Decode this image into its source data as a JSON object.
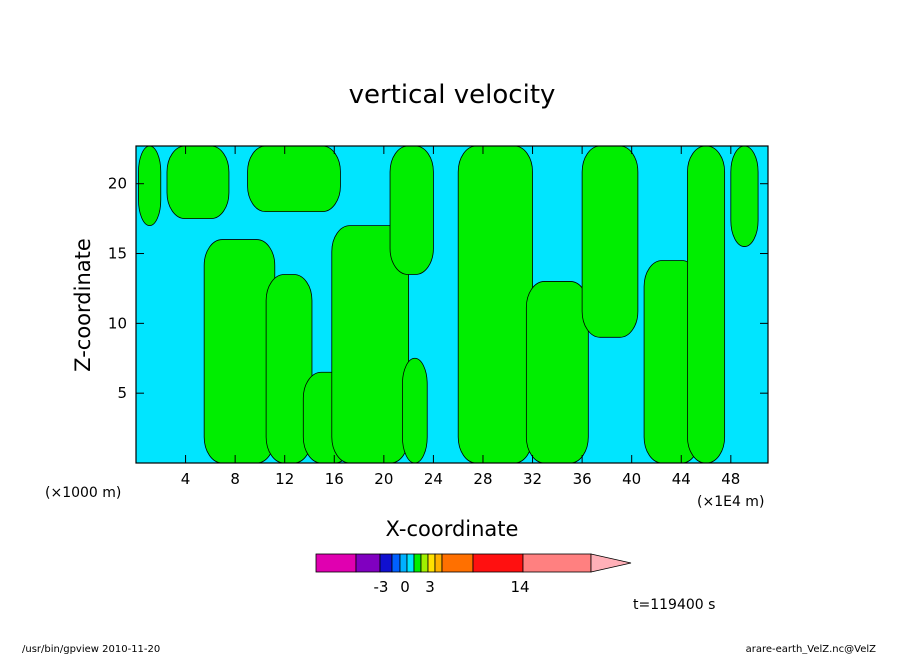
{
  "chart_data": {
    "type": "heatmap",
    "title": "vertical velocity",
    "xlabel": "X-coordinate",
    "ylabel": "Z-coordinate",
    "x_unit_left": "(×1000 m)",
    "x_unit_right": "(×1E4 m)",
    "xlim": [
      0,
      51
    ],
    "ylim": [
      0,
      22.7
    ],
    "x_ticks": [
      "4",
      "8",
      "12",
      "16",
      "20",
      "24",
      "28",
      "32",
      "36",
      "40",
      "44",
      "48"
    ],
    "x_tick_values": [
      4,
      8,
      12,
      16,
      20,
      24,
      28,
      32,
      36,
      40,
      44,
      48
    ],
    "y_ticks": [
      "5",
      "10",
      "15",
      "20"
    ],
    "y_tick_values": [
      5,
      10,
      15,
      20
    ],
    "fill_colors": {
      "negative": "#00e5ff",
      "positive": "#00ee00"
    },
    "green_regions": [
      {
        "x": [
          0.2,
          2.0
        ],
        "z": [
          17.0,
          22.7
        ]
      },
      {
        "x": [
          2.5,
          7.5
        ],
        "z": [
          17.5,
          22.7
        ]
      },
      {
        "x": [
          5.5,
          11.2
        ],
        "z": [
          0,
          16.0
        ]
      },
      {
        "x": [
          9.0,
          16.5
        ],
        "z": [
          18.0,
          22.7
        ]
      },
      {
        "x": [
          10.5,
          14.2
        ],
        "z": [
          0,
          13.5
        ]
      },
      {
        "x": [
          13.5,
          17.5
        ],
        "z": [
          0,
          6.5
        ]
      },
      {
        "x": [
          15.8,
          22.0
        ],
        "z": [
          0,
          17.0
        ]
      },
      {
        "x": [
          20.5,
          24.0
        ],
        "z": [
          13.5,
          22.7
        ]
      },
      {
        "x": [
          21.5,
          23.5
        ],
        "z": [
          0,
          7.5
        ]
      },
      {
        "x": [
          26.0,
          32.0
        ],
        "z": [
          0,
          22.7
        ]
      },
      {
        "x": [
          31.5,
          36.5
        ],
        "z": [
          0,
          13.0
        ]
      },
      {
        "x": [
          36.0,
          40.5
        ],
        "z": [
          9.0,
          22.7
        ]
      },
      {
        "x": [
          41.0,
          45.5
        ],
        "z": [
          0,
          14.5
        ]
      },
      {
        "x": [
          44.5,
          47.5
        ],
        "z": [
          0,
          22.7
        ]
      },
      {
        "x": [
          48.0,
          50.2
        ],
        "z": [
          15.5,
          22.7
        ]
      }
    ],
    "colorbar": {
      "colors": [
        "#e000b0",
        "#8000c0",
        "#1010d0",
        "#0060ff",
        "#00b0ff",
        "#00e5ff",
        "#00ee00",
        "#a0f000",
        "#ffe000",
        "#ffb000",
        "#ff7000",
        "#ff1010",
        "#ff8080",
        "#ffb0b8"
      ],
      "labels": [
        "-3",
        "0",
        "3",
        "14"
      ]
    },
    "time_label": "t=119400 s"
  },
  "footer": {
    "left": "/usr/bin/gpview  2010-11-20",
    "right": "arare-earth_VelZ.nc@VelZ"
  }
}
